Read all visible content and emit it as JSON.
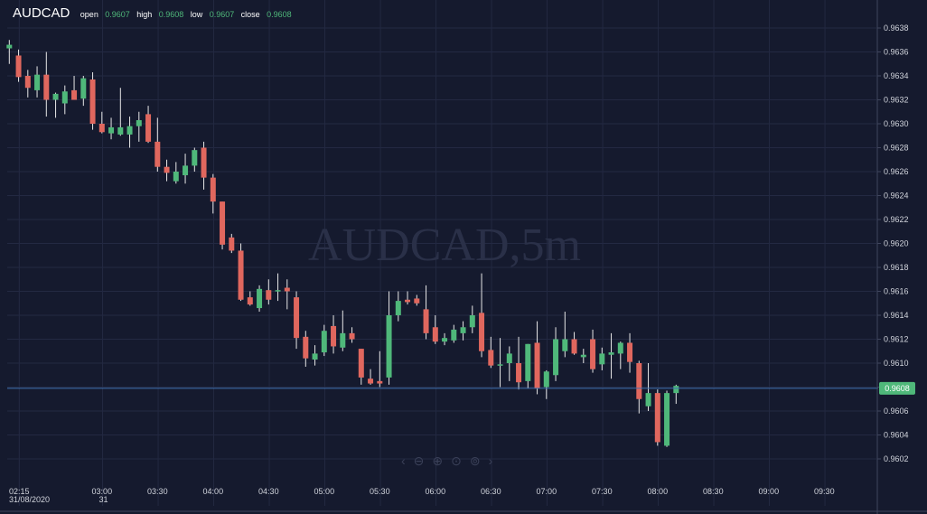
{
  "legend": {
    "symbol": "AUDCAD",
    "open_label": "open",
    "open": "0.9607",
    "high_label": "high",
    "high": "0.9608",
    "low_label": "low",
    "low": "0.9607",
    "close_label": "close",
    "close": "0.9608"
  },
  "watermark": "AUDCAD,5m",
  "colors": {
    "up": "#4fb87a",
    "down": "#e0675e",
    "background": "#151a2e",
    "last_line": "#3f6fb0"
  },
  "nav_icons": [
    "chevron-left-icon",
    "zoom-out-icon",
    "zoom-in-icon",
    "zoom-reset-icon",
    "zoom-fit-icon",
    "chevron-right-icon"
  ],
  "chart_data": {
    "type": "candlestick",
    "symbol": "AUDCAD",
    "timeframe": "5m",
    "ylim": [
      0.9601,
      0.96395
    ],
    "y_ticks": [
      "0.9638",
      "0.9636",
      "0.9634",
      "0.9632",
      "0.9630",
      "0.9628",
      "0.9626",
      "0.9624",
      "0.9622",
      "0.9620",
      "0.9618",
      "0.9616",
      "0.9614",
      "0.9612",
      "0.9610",
      "0.9608",
      "0.9606",
      "0.9604",
      "0.9602"
    ],
    "x_ticks": [
      {
        "time": "02:15",
        "sub": "31/08/2020"
      },
      {
        "time": "03:00",
        "sub": "31"
      },
      {
        "time": "03:30",
        "sub": ""
      },
      {
        "time": "04:00",
        "sub": ""
      },
      {
        "time": "04:30",
        "sub": ""
      },
      {
        "time": "05:00",
        "sub": ""
      },
      {
        "time": "05:30",
        "sub": ""
      },
      {
        "time": "06:00",
        "sub": ""
      },
      {
        "time": "06:30",
        "sub": ""
      },
      {
        "time": "07:00",
        "sub": ""
      },
      {
        "time": "07:30",
        "sub": ""
      },
      {
        "time": "08:00",
        "sub": ""
      },
      {
        "time": "08:30",
        "sub": ""
      },
      {
        "time": "09:00",
        "sub": ""
      },
      {
        "time": "09:30",
        "sub": ""
      }
    ],
    "last_price": "0.9608",
    "last_value": 0.96079,
    "candles": [
      {
        "o": 0.96363,
        "h": 0.9637,
        "l": 0.9635,
        "c": 0.96366
      },
      {
        "o": 0.96357,
        "h": 0.96362,
        "l": 0.96335,
        "c": 0.96339
      },
      {
        "o": 0.9634,
        "h": 0.96345,
        "l": 0.96322,
        "c": 0.9633
      },
      {
        "o": 0.96328,
        "h": 0.96348,
        "l": 0.96322,
        "c": 0.96341
      },
      {
        "o": 0.96341,
        "h": 0.9636,
        "l": 0.96306,
        "c": 0.9632
      },
      {
        "o": 0.9632,
        "h": 0.96326,
        "l": 0.96305,
        "c": 0.96325
      },
      {
        "o": 0.96317,
        "h": 0.96332,
        "l": 0.96308,
        "c": 0.96327
      },
      {
        "o": 0.96328,
        "h": 0.9634,
        "l": 0.96322,
        "c": 0.9632
      },
      {
        "o": 0.96321,
        "h": 0.9634,
        "l": 0.96315,
        "c": 0.96338
      },
      {
        "o": 0.96337,
        "h": 0.96343,
        "l": 0.96295,
        "c": 0.963
      },
      {
        "o": 0.963,
        "h": 0.9631,
        "l": 0.96292,
        "c": 0.96293
      },
      {
        "o": 0.96292,
        "h": 0.96305,
        "l": 0.96287,
        "c": 0.96297
      },
      {
        "o": 0.96291,
        "h": 0.9633,
        "l": 0.9629,
        "c": 0.96297
      },
      {
        "o": 0.96291,
        "h": 0.96306,
        "l": 0.9628,
        "c": 0.96298
      },
      {
        "o": 0.96298,
        "h": 0.9631,
        "l": 0.96285,
        "c": 0.96303
      },
      {
        "o": 0.96308,
        "h": 0.96315,
        "l": 0.96284,
        "c": 0.96285
      },
      {
        "o": 0.96285,
        "h": 0.96305,
        "l": 0.9626,
        "c": 0.96264
      },
      {
        "o": 0.96264,
        "h": 0.9627,
        "l": 0.96252,
        "c": 0.96259
      },
      {
        "o": 0.96252,
        "h": 0.96268,
        "l": 0.9625,
        "c": 0.9626
      },
      {
        "o": 0.96257,
        "h": 0.96275,
        "l": 0.9625,
        "c": 0.96265
      },
      {
        "o": 0.96265,
        "h": 0.9628,
        "l": 0.9626,
        "c": 0.96278
      },
      {
        "o": 0.9628,
        "h": 0.96285,
        "l": 0.96245,
        "c": 0.96255
      },
      {
        "o": 0.96255,
        "h": 0.96258,
        "l": 0.96225,
        "c": 0.96235
      },
      {
        "o": 0.96235,
        "h": 0.96235,
        "l": 0.96195,
        "c": 0.96199
      },
      {
        "o": 0.96205,
        "h": 0.96208,
        "l": 0.96192,
        "c": 0.96194
      },
      {
        "o": 0.96194,
        "h": 0.962,
        "l": 0.96152,
        "c": 0.96153
      },
      {
        "o": 0.96155,
        "h": 0.9616,
        "l": 0.96148,
        "c": 0.96149
      },
      {
        "o": 0.96146,
        "h": 0.96165,
        "l": 0.96143,
        "c": 0.96162
      },
      {
        "o": 0.96161,
        "h": 0.9617,
        "l": 0.96149,
        "c": 0.96153
      },
      {
        "o": 0.9616,
        "h": 0.96175,
        "l": 0.96152,
        "c": 0.96161
      },
      {
        "o": 0.96163,
        "h": 0.9617,
        "l": 0.96145,
        "c": 0.9616
      },
      {
        "o": 0.96155,
        "h": 0.9616,
        "l": 0.96112,
        "c": 0.96121
      },
      {
        "o": 0.96122,
        "h": 0.96127,
        "l": 0.96097,
        "c": 0.96104
      },
      {
        "o": 0.96103,
        "h": 0.96115,
        "l": 0.96098,
        "c": 0.96108
      },
      {
        "o": 0.96109,
        "h": 0.96132,
        "l": 0.96106,
        "c": 0.96127
      },
      {
        "o": 0.96131,
        "h": 0.9614,
        "l": 0.96108,
        "c": 0.96114
      },
      {
        "o": 0.96113,
        "h": 0.96144,
        "l": 0.9611,
        "c": 0.96125
      },
      {
        "o": 0.96125,
        "h": 0.9613,
        "l": 0.96117,
        "c": 0.9612
      },
      {
        "o": 0.96112,
        "h": 0.96112,
        "l": 0.96082,
        "c": 0.96088
      },
      {
        "o": 0.96087,
        "h": 0.96095,
        "l": 0.96082,
        "c": 0.96083
      },
      {
        "o": 0.96085,
        "h": 0.9611,
        "l": 0.9608,
        "c": 0.96083
      },
      {
        "o": 0.96088,
        "h": 0.9616,
        "l": 0.96082,
        "c": 0.9614
      },
      {
        "o": 0.9614,
        "h": 0.9616,
        "l": 0.96135,
        "c": 0.96152
      },
      {
        "o": 0.96153,
        "h": 0.9616,
        "l": 0.96149,
        "c": 0.96151
      },
      {
        "o": 0.96154,
        "h": 0.96157,
        "l": 0.96148,
        "c": 0.9615
      },
      {
        "o": 0.96145,
        "h": 0.96165,
        "l": 0.9612,
        "c": 0.96125
      },
      {
        "o": 0.9613,
        "h": 0.9614,
        "l": 0.96116,
        "c": 0.96118
      },
      {
        "o": 0.96118,
        "h": 0.96125,
        "l": 0.96115,
        "c": 0.96121
      },
      {
        "o": 0.96119,
        "h": 0.96132,
        "l": 0.96117,
        "c": 0.96128
      },
      {
        "o": 0.96125,
        "h": 0.96135,
        "l": 0.96119,
        "c": 0.9613
      },
      {
        "o": 0.9613,
        "h": 0.96148,
        "l": 0.96125,
        "c": 0.9614
      },
      {
        "o": 0.96142,
        "h": 0.96175,
        "l": 0.96105,
        "c": 0.9611
      },
      {
        "o": 0.96111,
        "h": 0.96122,
        "l": 0.96096,
        "c": 0.96098
      },
      {
        "o": 0.96098,
        "h": 0.96121,
        "l": 0.9608,
        "c": 0.96099
      },
      {
        "o": 0.961,
        "h": 0.96114,
        "l": 0.96085,
        "c": 0.96108
      },
      {
        "o": 0.961,
        "h": 0.96122,
        "l": 0.96078,
        "c": 0.96084
      },
      {
        "o": 0.96085,
        "h": 0.96116,
        "l": 0.96079,
        "c": 0.96116
      },
      {
        "o": 0.96117,
        "h": 0.96135,
        "l": 0.96074,
        "c": 0.96079
      },
      {
        "o": 0.9608,
        "h": 0.96094,
        "l": 0.9607,
        "c": 0.96093
      },
      {
        "o": 0.9609,
        "h": 0.9613,
        "l": 0.96085,
        "c": 0.9612
      },
      {
        "o": 0.9611,
        "h": 0.96143,
        "l": 0.96105,
        "c": 0.9612
      },
      {
        "o": 0.9612,
        "h": 0.96126,
        "l": 0.96107,
        "c": 0.96108
      },
      {
        "o": 0.96105,
        "h": 0.96112,
        "l": 0.961,
        "c": 0.96107
      },
      {
        "o": 0.9612,
        "h": 0.96128,
        "l": 0.96092,
        "c": 0.96095
      },
      {
        "o": 0.96099,
        "h": 0.96113,
        "l": 0.96094,
        "c": 0.96108
      },
      {
        "o": 0.96107,
        "h": 0.96125,
        "l": 0.96087,
        "c": 0.96109
      },
      {
        "o": 0.96108,
        "h": 0.96118,
        "l": 0.96095,
        "c": 0.96117
      },
      {
        "o": 0.96117,
        "h": 0.96125,
        "l": 0.96092,
        "c": 0.96101
      },
      {
        "o": 0.961,
        "h": 0.96102,
        "l": 0.96058,
        "c": 0.9607
      },
      {
        "o": 0.96064,
        "h": 0.961,
        "l": 0.9606,
        "c": 0.96075
      },
      {
        "o": 0.96075,
        "h": 0.96078,
        "l": 0.96031,
        "c": 0.96034
      },
      {
        "o": 0.96031,
        "h": 0.96077,
        "l": 0.9603,
        "c": 0.96075
      },
      {
        "o": 0.96075,
        "h": 0.96082,
        "l": 0.96066,
        "c": 0.96081
      }
    ]
  }
}
